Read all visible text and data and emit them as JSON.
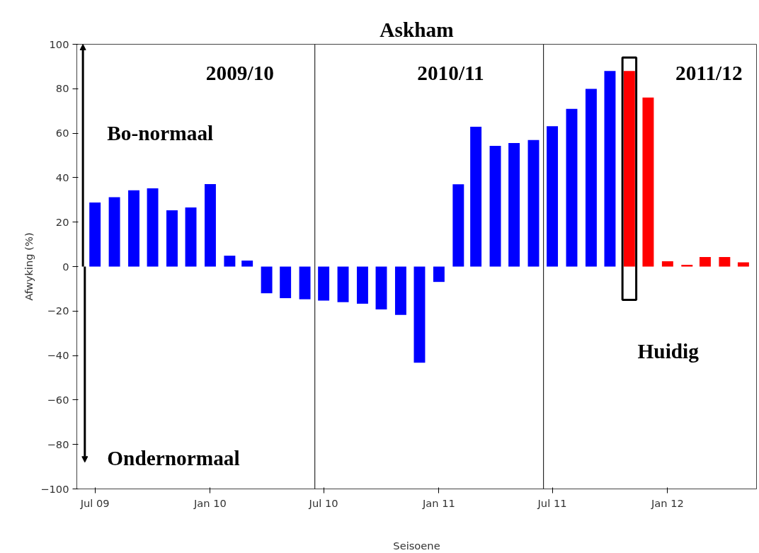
{
  "chart_data": {
    "type": "bar",
    "title": "Askham",
    "xlabel": "Seisoene",
    "ylabel": "Afwyking (%)",
    "x": [
      "2009-07-15",
      "2009-08-15",
      "2009-09-15",
      "2009-10-15",
      "2009-11-15",
      "2009-12-15",
      "2010-01-15",
      "2010-02-15",
      "2010-03-15",
      "2010-04-15",
      "2010-05-15",
      "2010-06-15",
      "2010-07-15",
      "2010-08-15",
      "2010-09-15",
      "2010-10-15",
      "2010-11-15",
      "2010-12-15",
      "2011-01-15",
      "2011-02-15",
      "2011-03-15",
      "2011-04-15",
      "2011-05-15",
      "2011-06-15",
      "2011-07-15",
      "2011-08-15",
      "2011-09-15",
      "2011-10-15",
      "2011-11-15",
      "2011-12-15",
      "2012-01-15",
      "2012-02-15",
      "2012-03-15",
      "2012-04-15",
      "2012-05-15"
    ],
    "values": [
      28.8,
      31.2,
      34.3,
      35.2,
      25.3,
      26.6,
      37.1,
      4.9,
      2.7,
      -12.0,
      -14.2,
      -14.7,
      -15.3,
      -16.0,
      -16.7,
      -19.3,
      -21.7,
      -43.2,
      -6.9,
      37.0,
      62.9,
      54.3,
      55.6,
      56.9,
      63.1,
      70.9,
      79.9,
      88.0,
      88.0,
      76.0,
      2.4,
      0.8,
      4.3,
      4.3,
      1.9
    ],
    "colors": [
      "#0000ff",
      "#0000ff",
      "#0000ff",
      "#0000ff",
      "#0000ff",
      "#0000ff",
      "#0000ff",
      "#0000ff",
      "#0000ff",
      "#0000ff",
      "#0000ff",
      "#0000ff",
      "#0000ff",
      "#0000ff",
      "#0000ff",
      "#0000ff",
      "#0000ff",
      "#0000ff",
      "#0000ff",
      "#0000ff",
      "#0000ff",
      "#0000ff",
      "#0000ff",
      "#0000ff",
      "#0000ff",
      "#0000ff",
      "#0000ff",
      "#0000ff",
      "#ff0000",
      "#ff0000",
      "#ff0000",
      "#ff0000",
      "#ff0000",
      "#ff0000",
      "#ff0000"
    ],
    "xlim": [
      "2009-06-16",
      "2012-06-05"
    ],
    "xticks": [
      {
        "value": "2009-07-15",
        "label": "Jul 09"
      },
      {
        "value": "2010-01-15",
        "label": "Jan 10"
      },
      {
        "value": "2010-07-15",
        "label": "Jul 10"
      },
      {
        "value": "2011-01-15",
        "label": "Jan 11"
      },
      {
        "value": "2011-07-15",
        "label": "Jul 11"
      },
      {
        "value": "2012-01-15",
        "label": "Jan 12"
      }
    ],
    "ylim": [
      -100,
      100
    ],
    "yticks": [
      -100,
      -80,
      -60,
      -40,
      -20,
      0,
      20,
      40,
      60,
      80,
      100
    ],
    "ref_lines": [
      {
        "axis": "x",
        "value": "2010-07-01",
        "color": "#000000"
      },
      {
        "axis": "x",
        "value": "2011-07-01",
        "color": "#000000"
      }
    ],
    "annotations": [
      "2009/10",
      "2010/11",
      "2011/12",
      "Bo-normaal",
      "Ondernormaal",
      "Huidig"
    ],
    "grid": false
  }
}
